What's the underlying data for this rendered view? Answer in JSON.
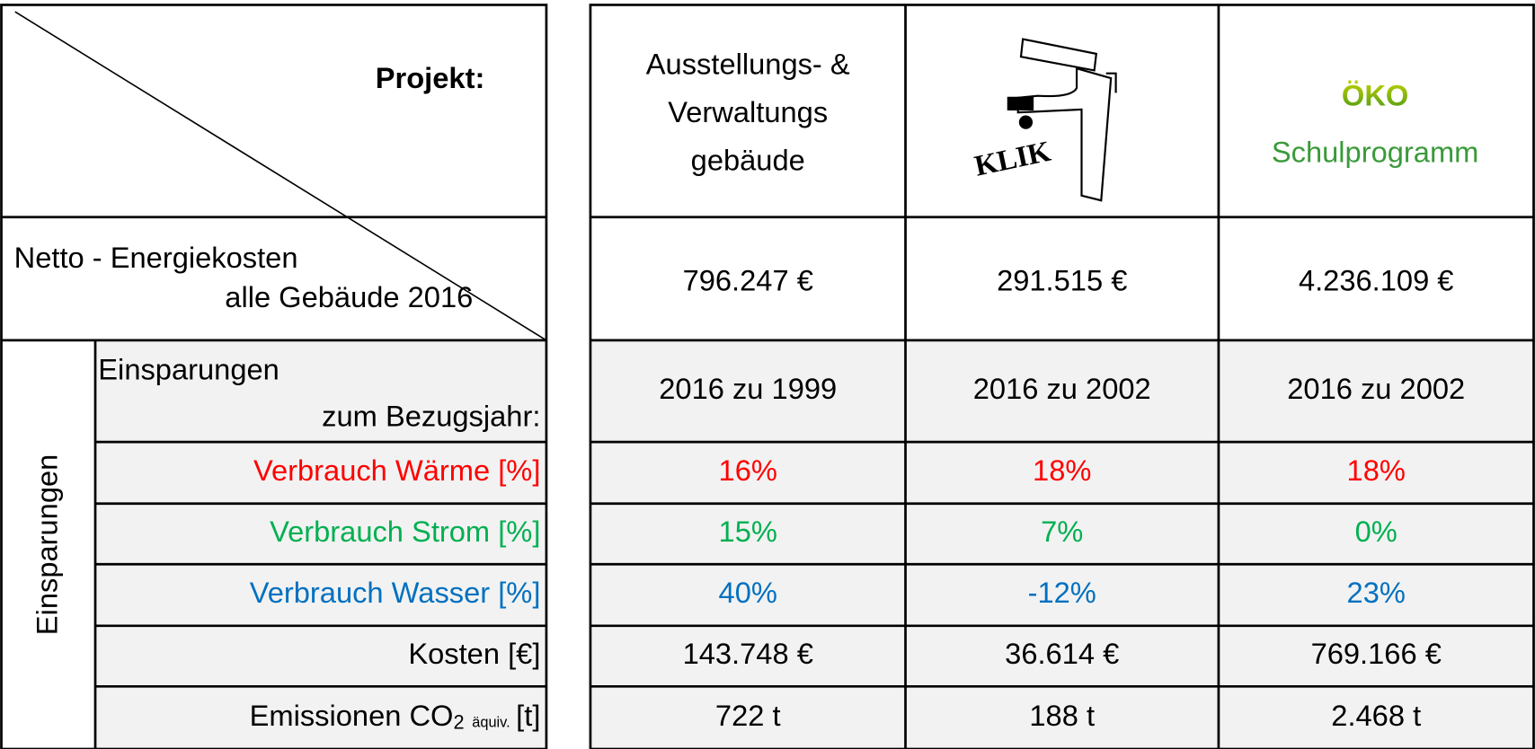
{
  "header": {
    "corner_label": "Projekt:",
    "projects": [
      {
        "lines": [
          "Ausstellungs- &",
          "Verwaltungs",
          "gebäude"
        ]
      },
      {
        "logo_text": "KLIK"
      },
      {
        "logo_text": "ÖKO",
        "logo_subtitle": "Schulprogramm"
      }
    ]
  },
  "table": {
    "energy_row": {
      "label_lines": [
        "Netto - Energiekosten",
        "alle Gebäude 2016"
      ],
      "values": [
        "796.247 €",
        "291.515 €",
        "4.236.109 €"
      ]
    },
    "group_label": "Einsparungen",
    "rows": [
      {
        "label_lines": [
          "Einsparungen",
          "zum Bezugsjahr:"
        ],
        "values": [
          "2016 zu 1999",
          "2016 zu 2002",
          "2016 zu 2002"
        ]
      },
      {
        "label": "Verbrauch Wärme [%]",
        "color": "#ff0000",
        "values": [
          "16%",
          "18%",
          "18%"
        ]
      },
      {
        "label": "Verbrauch Strom [%]",
        "color": "#00b050",
        "values": [
          "15%",
          "7%",
          "0%"
        ]
      },
      {
        "label": "Verbrauch Wasser [%]",
        "color": "#0070c0",
        "values": [
          "40%",
          "-12%",
          "23%"
        ]
      },
      {
        "label": "Kosten [€]",
        "values": [
          "143.748 €",
          "36.614 €",
          "769.166 €"
        ]
      },
      {
        "label_parts": [
          "Emissionen CO",
          "2",
          "äquiv.",
          "[t]"
        ],
        "values": [
          "722 t",
          "188 t",
          "2.468 t"
        ]
      }
    ]
  }
}
